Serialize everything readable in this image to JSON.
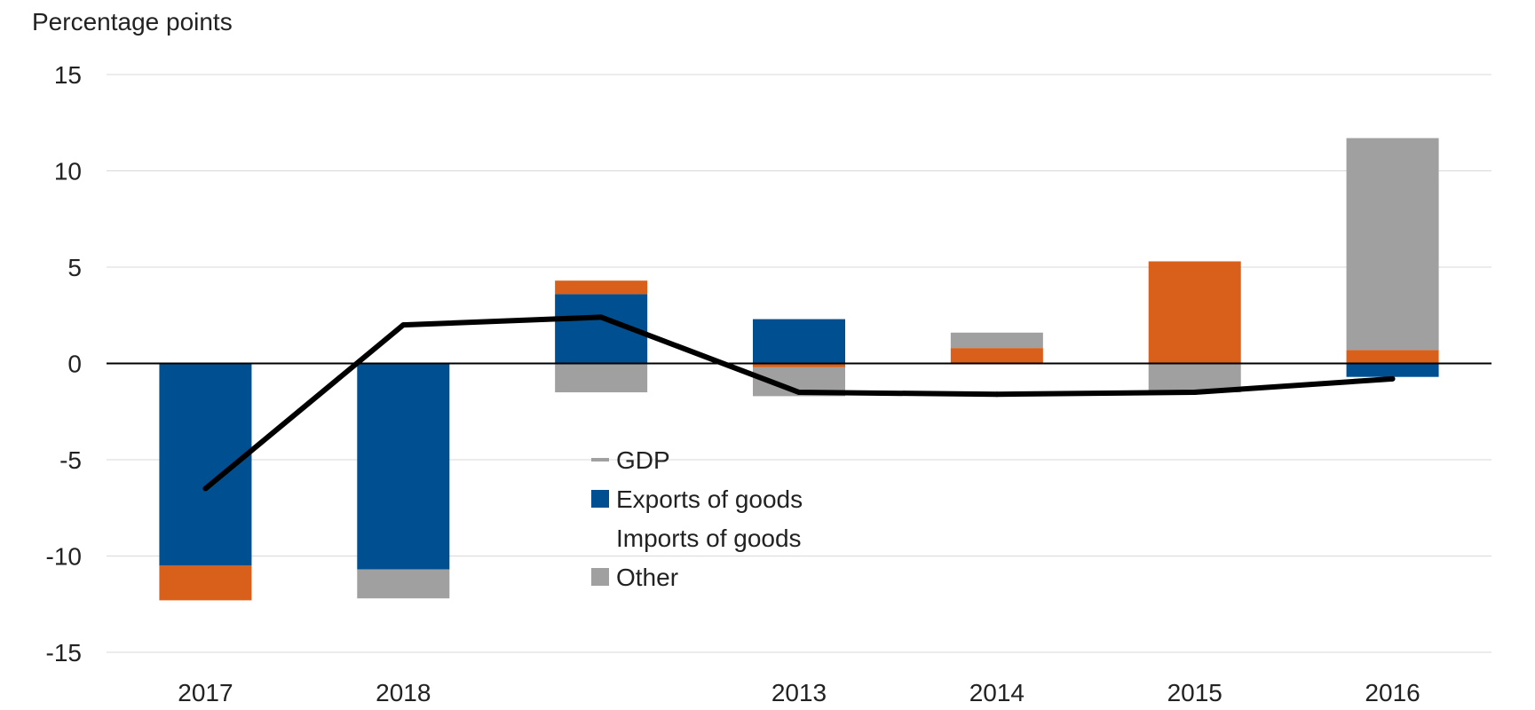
{
  "chart_data": {
    "type": "bar",
    "stacked": true,
    "ylabel": "Percentage points",
    "ylim": [
      -15,
      15
    ],
    "yticks": [
      15,
      10,
      5,
      0,
      -5,
      -10,
      -15
    ],
    "grid": true,
    "categories": [
      "2017",
      "2018",
      "",
      "2013",
      "2014",
      "2015",
      "2016"
    ],
    "series": [
      {
        "name": "Exports of goods",
        "kind": "bar",
        "color": "#004f91",
        "values": [
          -10.5,
          -10.7,
          3.6,
          2.3,
          0,
          0,
          -0.7
        ]
      },
      {
        "name": "Imports of goods",
        "kind": "bar",
        "color": "#d9601a",
        "values": [
          -1.8,
          0,
          0.7,
          -0.2,
          0.8,
          5.3,
          0.7
        ]
      },
      {
        "name": "Other",
        "kind": "bar",
        "color": "#a0a0a0",
        "values": [
          0,
          -1.5,
          -1.5,
          -1.5,
          0.8,
          -1.5,
          11.0
        ]
      },
      {
        "name": "GDP",
        "kind": "line",
        "color": "#000000",
        "values": [
          -6.5,
          2.0,
          2.4,
          -1.5,
          -1.6,
          -1.5,
          -0.8
        ]
      }
    ],
    "legend": {
      "placement": "center",
      "entries": [
        {
          "label": "GDP",
          "color": "#a0a0a0",
          "marker": "line"
        },
        {
          "label": "Exports of goods",
          "color": "#004f91",
          "marker": "square"
        },
        {
          "label": "Imports of goods",
          "color": "#ffffff",
          "marker": "none"
        },
        {
          "label": "Other",
          "color": "#a0a0a0",
          "marker": "square"
        }
      ]
    }
  }
}
